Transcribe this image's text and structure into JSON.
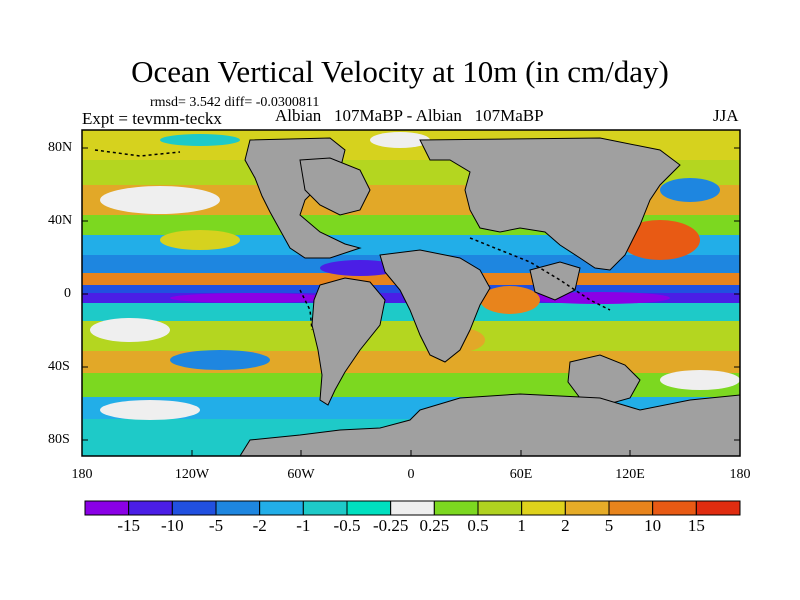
{
  "title": "Ocean Vertical Velocity at 10m (in cm/day)",
  "stats": "rmsd= 3.542 diff= -0.0300811",
  "experiment": "Expt = tevmm-teckx",
  "comparison": "Albian   107MaBP - Albian   107MaBP",
  "season": "JJA",
  "map": {
    "lat_labels": [
      "80N",
      "40N",
      "0",
      "40S",
      "80S"
    ],
    "lon_labels": [
      "180",
      "120W",
      "60W",
      "0",
      "60E",
      "120E",
      "180"
    ],
    "land_color": "#a0a0a0",
    "coast_color": "#000000"
  },
  "colorbar": {
    "labels": [
      "-15",
      "-10",
      "-5",
      "-2",
      "-1",
      "-0.5",
      "-0.25",
      "0.25",
      "0.5",
      "1",
      "2",
      "5",
      "10",
      "15"
    ],
    "colors": [
      "#8a00e6",
      "#4b1ee6",
      "#2150e0",
      "#1e86e0",
      "#22aee8",
      "#1ecac8",
      "#00e0c0",
      "#efefef",
      "#7cd820",
      "#b0d220",
      "#dfd21c",
      "#e6ac28",
      "#e8841c",
      "#e85a14",
      "#e02c10"
    ]
  }
}
